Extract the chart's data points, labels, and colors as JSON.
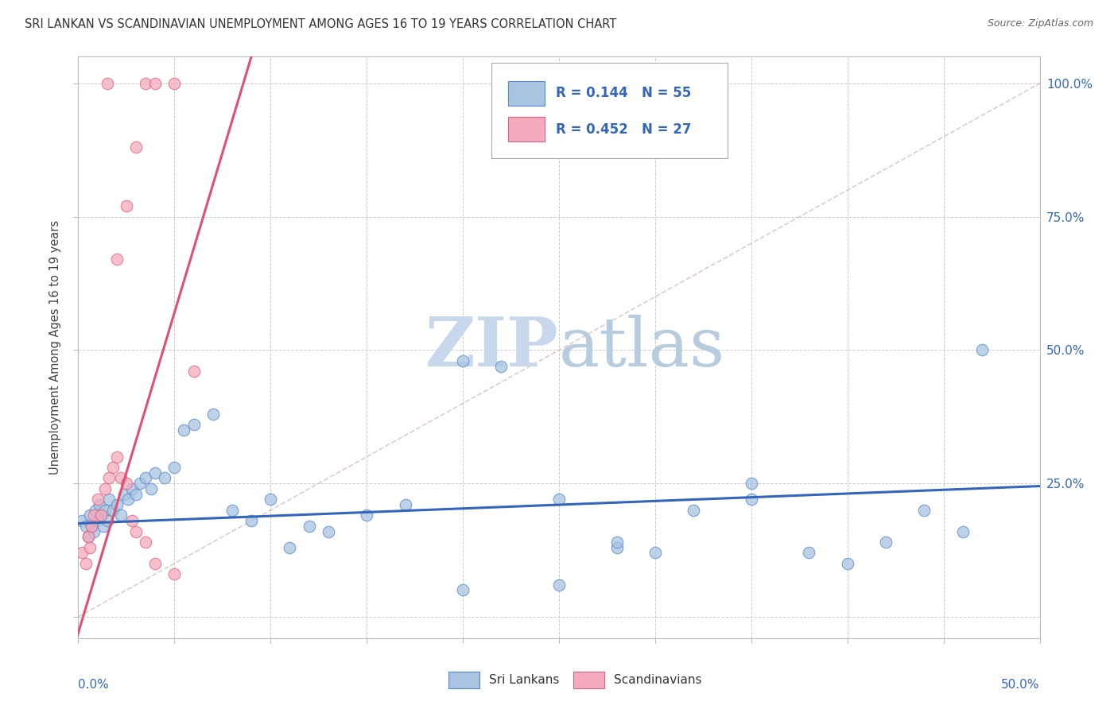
{
  "title": "SRI LANKAN VS SCANDINAVIAN UNEMPLOYMENT AMONG AGES 16 TO 19 YEARS CORRELATION CHART",
  "source": "Source: ZipAtlas.com",
  "ylabel": "Unemployment Among Ages 16 to 19 years",
  "xmin": 0.0,
  "xmax": 0.5,
  "ymin": -0.04,
  "ymax": 1.05,
  "yticks": [
    0.0,
    0.25,
    0.5,
    0.75,
    1.0
  ],
  "ytick_labels_right": [
    "",
    "25.0%",
    "50.0%",
    "75.0%",
    "100.0%"
  ],
  "sri_lankans_R": 0.144,
  "sri_lankans_N": 55,
  "scandinavians_R": 0.452,
  "scandinavians_N": 27,
  "color_blue": "#A8C4E0",
  "color_pink": "#F4AABC",
  "color_blue_edge": "#5588CC",
  "color_pink_edge": "#E06080",
  "color_trend_blue": "#3366BB",
  "color_trend_pink": "#E05070",
  "color_diag": "#DDBBBB",
  "watermark_color": "#C8D8EC",
  "sri_lankans_x": [
    0.002,
    0.004,
    0.005,
    0.006,
    0.007,
    0.008,
    0.009,
    0.01,
    0.011,
    0.012,
    0.013,
    0.014,
    0.015,
    0.016,
    0.018,
    0.02,
    0.022,
    0.024,
    0.026,
    0.028,
    0.03,
    0.032,
    0.035,
    0.038,
    0.04,
    0.045,
    0.05,
    0.055,
    0.06,
    0.07,
    0.08,
    0.09,
    0.1,
    0.11,
    0.12,
    0.13,
    0.15,
    0.17,
    0.2,
    0.22,
    0.25,
    0.28,
    0.3,
    0.32,
    0.35,
    0.38,
    0.4,
    0.42,
    0.44,
    0.46,
    0.2,
    0.25,
    0.28,
    0.35,
    0.47
  ],
  "sri_lankans_y": [
    0.18,
    0.17,
    0.15,
    0.19,
    0.17,
    0.16,
    0.2,
    0.18,
    0.21,
    0.19,
    0.17,
    0.2,
    0.18,
    0.22,
    0.2,
    0.21,
    0.19,
    0.23,
    0.22,
    0.24,
    0.23,
    0.25,
    0.26,
    0.24,
    0.27,
    0.26,
    0.28,
    0.35,
    0.36,
    0.38,
    0.2,
    0.18,
    0.22,
    0.13,
    0.17,
    0.16,
    0.19,
    0.21,
    0.48,
    0.47,
    0.22,
    0.13,
    0.12,
    0.2,
    0.22,
    0.12,
    0.1,
    0.14,
    0.2,
    0.16,
    0.05,
    0.06,
    0.14,
    0.25,
    0.5
  ],
  "scandinavians_x": [
    0.002,
    0.004,
    0.005,
    0.006,
    0.007,
    0.008,
    0.01,
    0.012,
    0.014,
    0.016,
    0.018,
    0.02,
    0.022,
    0.025,
    0.028,
    0.03,
    0.035,
    0.04,
    0.05,
    0.06,
    0.02,
    0.025,
    0.03,
    0.035,
    0.04,
    0.05,
    0.015
  ],
  "scandinavians_y": [
    0.12,
    0.1,
    0.15,
    0.13,
    0.17,
    0.19,
    0.22,
    0.19,
    0.24,
    0.26,
    0.28,
    0.3,
    0.26,
    0.25,
    0.18,
    0.16,
    0.14,
    0.1,
    0.08,
    0.46,
    0.67,
    0.77,
    0.88,
    1.0,
    1.0,
    1.0,
    1.0
  ],
  "trend_blue_x0": 0.0,
  "trend_blue_y0": 0.175,
  "trend_blue_x1": 0.5,
  "trend_blue_y1": 0.245,
  "trend_pink_x0": 0.0,
  "trend_pink_y0": -0.03,
  "trend_pink_x1": 0.065,
  "trend_pink_y1": 0.75
}
